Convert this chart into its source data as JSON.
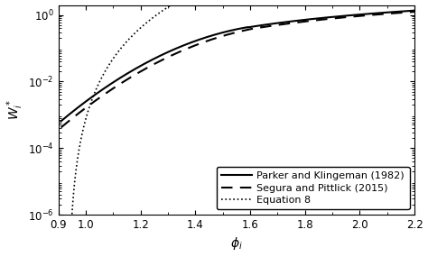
{
  "title": "",
  "xlabel": "$\\phi_i$",
  "ylabel": "$W_i^*$",
  "xlim": [
    0.9,
    2.2
  ],
  "ylim": [
    1e-06,
    2.0
  ],
  "xticks": [
    0.9,
    1.0,
    1.2,
    1.4,
    1.6,
    1.8,
    2.0,
    2.2
  ],
  "yticks_log": [
    -6,
    -4,
    -2,
    0
  ],
  "line_color": "#000000",
  "background_color": "#ffffff",
  "legend_labels": [
    "Parker and Klingeman (1982)",
    "Segura and Pittlick (2015)",
    "Equation 8"
  ],
  "legend_loc": "lower right",
  "xlabel_fontsize": 10,
  "ylabel_fontsize": 10,
  "tick_fontsize": 8.5,
  "legend_fontsize": 8,
  "pk_A": 0.0025,
  "pk_b1": 14.2,
  "pk_b2": 9.28,
  "pk_phi_crit": 1.59,
  "pk_c1": 11.2,
  "pk_c2": 0.822,
  "pk_power": 4.5,
  "sp_scale": 0.97,
  "eq8_a": 0.00218,
  "eq8_b": 14.2,
  "eq8_phi0": 0.9
}
